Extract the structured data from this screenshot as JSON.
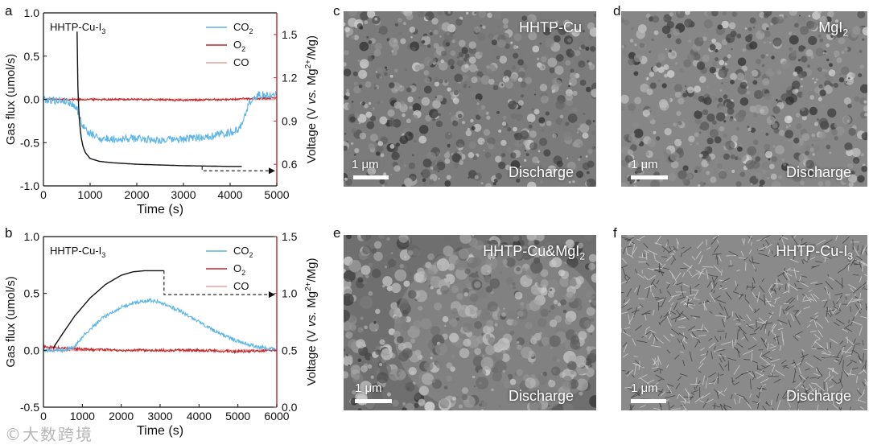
{
  "chart_data": [
    {
      "panel": "a",
      "type": "line",
      "annotation": "HHTP-Cu-I",
      "annotation_subscript": "3",
      "xlabel": "Time (s)",
      "ylabel_left": "Gas flux (umol/s)",
      "ylabel_right": "Voltage (V vs. Mg2+/Mg)",
      "ylabel_right_parts": {
        "a": "Voltage (V ",
        "b": "vs.",
        "c": " Mg",
        "sup": "2+",
        "d": "/Mg)"
      },
      "xlim": [
        0,
        5000
      ],
      "ylim_left": [
        -1.0,
        1.0
      ],
      "ylim_right": [
        0.45,
        1.65
      ],
      "x_ticks": [
        "0",
        "1000",
        "2000",
        "3000",
        "4000",
        "5000"
      ],
      "y_ticks_left": [
        "-1.0",
        "-0.5",
        "0.0",
        "0.5",
        "1.0"
      ],
      "y_ticks_right": [
        "0.6",
        "0.9",
        "1.2",
        "1.5"
      ],
      "legend": [
        {
          "label": "CO",
          "sub": "2",
          "color": "#5ab4e6"
        },
        {
          "label": "O",
          "sub": "2",
          "color": "#c0272d"
        },
        {
          "label": "CO",
          "sub": "",
          "color": "#e8a09a"
        }
      ],
      "series": [
        {
          "name": "CO2",
          "axis": "left",
          "color": "#5ab4e6",
          "x": [
            0,
            500,
            700,
            800,
            900,
            1000,
            1100,
            1200,
            1500,
            2000,
            2500,
            3000,
            3500,
            4000,
            4200,
            4300,
            4400,
            4600,
            5000
          ],
          "y": [
            0.0,
            -0.02,
            -0.08,
            -0.25,
            -0.35,
            -0.4,
            -0.42,
            -0.45,
            -0.46,
            -0.45,
            -0.47,
            -0.46,
            -0.43,
            -0.38,
            -0.35,
            -0.2,
            -0.05,
            0.05,
            0.05
          ]
        },
        {
          "name": "O2",
          "axis": "left",
          "color": "#c0272d",
          "x": [
            0,
            1000,
            2000,
            3000,
            4000,
            5000
          ],
          "y": [
            0.0,
            0.0,
            0.0,
            -0.01,
            0.0,
            0.02
          ]
        },
        {
          "name": "CO",
          "axis": "left",
          "color": "#e8a09a",
          "x": [
            0,
            1000,
            2000,
            3000,
            4000,
            5000
          ],
          "y": [
            0.0,
            0.0,
            0.0,
            0.0,
            0.0,
            0.0
          ]
        },
        {
          "name": "Voltage",
          "axis": "right",
          "color": "#111111",
          "x": [
            720,
            730,
            760,
            800,
            850,
            900,
            1000,
            1200,
            1500,
            2000,
            3000,
            4000,
            4250
          ],
          "y": [
            1.52,
            1.2,
            0.95,
            0.8,
            0.72,
            0.68,
            0.64,
            0.62,
            0.61,
            0.6,
            0.59,
            0.585,
            0.585
          ]
        }
      ]
    },
    {
      "panel": "b",
      "type": "line",
      "annotation": "HHTP-Cu-I",
      "annotation_subscript": "3",
      "xlabel": "Time (s)",
      "ylabel_left": "Gas flux (umol/s)",
      "ylabel_right": "Voltage (V vs. Mg2+/Mg)",
      "ylabel_right_parts": {
        "a": "Voltage (V ",
        "b": "vs.",
        "c": " Mg",
        "sup": "2+",
        "d": "/Mg)"
      },
      "xlim": [
        0,
        6000
      ],
      "ylim_left": [
        -0.5,
        1.0
      ],
      "ylim_right": [
        0.0,
        1.5
      ],
      "x_ticks": [
        "0",
        "1000",
        "2000",
        "3000",
        "4000",
        "5000",
        "6000"
      ],
      "y_ticks_left": [
        "-0.5",
        "0.0",
        "0.5",
        "1.0"
      ],
      "y_ticks_right": [
        "0.0",
        "0.5",
        "1.0",
        "1.5"
      ],
      "legend": [
        {
          "label": "CO",
          "sub": "2",
          "color": "#5ab4e6"
        },
        {
          "label": "O",
          "sub": "2",
          "color": "#c0272d"
        },
        {
          "label": "CO",
          "sub": "",
          "color": "#e8a09a"
        }
      ],
      "series": [
        {
          "name": "CO2",
          "axis": "left",
          "color": "#5ab4e6",
          "x": [
            0,
            500,
            800,
            1000,
            1500,
            2000,
            2500,
            2800,
            3000,
            3500,
            4000,
            4500,
            5000,
            5500,
            6000
          ],
          "y": [
            0.0,
            0.0,
            0.03,
            0.12,
            0.28,
            0.38,
            0.43,
            0.44,
            0.42,
            0.35,
            0.25,
            0.15,
            0.08,
            0.03,
            0.01
          ]
        },
        {
          "name": "O2",
          "axis": "left",
          "color": "#c0272d",
          "x": [
            0,
            1000,
            2000,
            3000,
            4000,
            5000,
            6000
          ],
          "y": [
            0.03,
            0.01,
            0.0,
            0.0,
            0.0,
            -0.01,
            0.0
          ]
        },
        {
          "name": "CO",
          "axis": "left",
          "color": "#e8a09a",
          "x": [
            0,
            1000,
            2000,
            3000,
            4000,
            5000,
            6000
          ],
          "y": [
            0.0,
            0.0,
            0.0,
            0.0,
            0.0,
            0.0,
            0.0
          ]
        },
        {
          "name": "Voltage",
          "axis": "right",
          "color": "#111111",
          "x": [
            250,
            500,
            800,
            1200,
            1600,
            2000,
            2300,
            2600,
            3100
          ],
          "y": [
            0.52,
            0.65,
            0.8,
            0.96,
            1.08,
            1.16,
            1.19,
            1.2,
            1.2
          ]
        }
      ]
    }
  ],
  "panels": {
    "a": "a",
    "b": "b",
    "c": "c",
    "d": "d",
    "e": "e",
    "f": "f"
  },
  "sem": [
    {
      "panel": "c",
      "label": "HHTP-Cu",
      "label_sub": "",
      "mode": "Discharge",
      "scale": "1 μm",
      "tone": "#7b7b7b"
    },
    {
      "panel": "d",
      "label": "MgI",
      "label_sub": "2",
      "mode": "Discharge",
      "scale": "1 μm",
      "tone": "#868686"
    },
    {
      "panel": "e",
      "label": "HHTP-Cu&MgI",
      "label_sub": "2",
      "mode": "Discharge",
      "scale": "1 μm",
      "tone": "#6f6f6f"
    },
    {
      "panel": "f",
      "label": "HHTP-Cu-I",
      "label_sub": "3",
      "mode": "Discharge",
      "scale": "1 μm",
      "tone": "#8a8a8a"
    }
  ],
  "watermark": "©大数跨境"
}
